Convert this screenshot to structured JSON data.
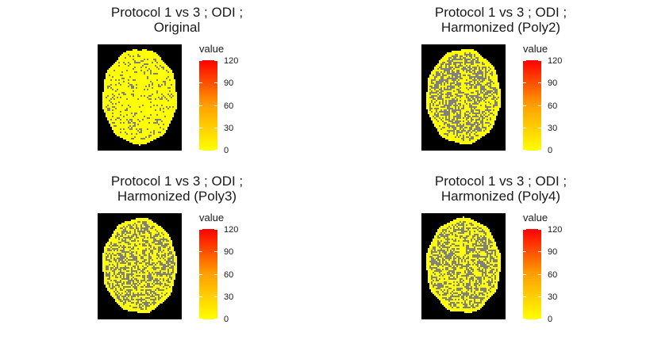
{
  "chart_data": [
    {
      "type": "heatmap",
      "title_line1": "Protocol 1 vs 3 ; ODI ;",
      "title_line2": "Original",
      "legend_title": "value",
      "color_scale": {
        "low": "#FFFF00",
        "high": "#FF0000",
        "limits": [
          0,
          120
        ]
      },
      "ticks": [
        "120",
        "90",
        "60",
        "30",
        "0"
      ],
      "tick_values": [
        120,
        90,
        60,
        30,
        0
      ],
      "description": "axial brain slice, mostly yellow (values near 0) with scattered gray (NA)",
      "na_fraction": 0.18
    },
    {
      "type": "heatmap",
      "title_line1": "Protocol 1 vs 3 ; ODI ;",
      "title_line2": "Harmonized (Poly2)",
      "legend_title": "value",
      "color_scale": {
        "low": "#FFFF00",
        "high": "#FF0000",
        "limits": [
          0,
          120
        ]
      },
      "ticks": [
        "120",
        "90",
        "60",
        "30",
        "0"
      ],
      "tick_values": [
        120,
        90,
        60,
        30,
        0
      ],
      "description": "axial brain slice, mixed gray and yellow",
      "na_fraction": 0.55
    },
    {
      "type": "heatmap",
      "title_line1": "Protocol 1 vs 3 ; ODI ;",
      "title_line2": "Harmonized (Poly3)",
      "legend_title": "value",
      "color_scale": {
        "low": "#FFFF00",
        "high": "#FF0000",
        "limits": [
          0,
          120
        ]
      },
      "ticks": [
        "120",
        "90",
        "60",
        "30",
        "0"
      ],
      "tick_values": [
        120,
        90,
        60,
        30,
        0
      ],
      "description": "axial brain slice, mixed gray and yellow",
      "na_fraction": 0.5
    },
    {
      "type": "heatmap",
      "title_line1": "Protocol 1 vs 3 ; ODI ;",
      "title_line2": "Harmonized (Poly4)",
      "legend_title": "value",
      "color_scale": {
        "low": "#FFFF00",
        "high": "#FF0000",
        "limits": [
          0,
          120
        ]
      },
      "ticks": [
        "120",
        "90",
        "60",
        "30",
        "0"
      ],
      "tick_values": [
        120,
        90,
        60,
        30,
        0
      ],
      "description": "axial brain slice, mixed gray and yellow",
      "na_fraction": 0.5
    }
  ],
  "colors": {
    "background_slice": "#000000",
    "brain_value": "#FFFF00",
    "na_voxel": "#808080"
  }
}
